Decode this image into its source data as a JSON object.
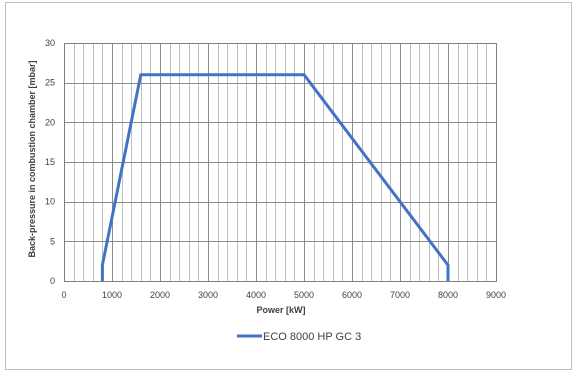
{
  "chart_data": {
    "type": "line",
    "xlabel": "Power [kW]",
    "ylabel": "Back-pressure in combustion chamber [mbar]",
    "xlim": [
      0,
      9000
    ],
    "ylim": [
      0,
      30
    ],
    "x_major_ticks": [
      0,
      1000,
      2000,
      3000,
      4000,
      5000,
      6000,
      7000,
      8000,
      9000
    ],
    "x_tick_labels": [
      "0",
      "1000",
      "2000",
      "3000",
      "4000",
      "5000",
      "6000",
      "7000",
      "8000",
      "9000"
    ],
    "y_major_ticks": [
      0,
      5,
      10,
      15,
      20,
      25,
      30
    ],
    "y_tick_labels": [
      "0",
      "5",
      "10",
      "15",
      "20",
      "25",
      "30"
    ],
    "x_minor_step": 200,
    "grid": true,
    "legend_position": "bottom",
    "series": [
      {
        "name": "ECO 8000 HP GC 3",
        "color": "#4472c4",
        "points": [
          {
            "x": 800,
            "y": 0
          },
          {
            "x": 800,
            "y": 2
          },
          {
            "x": 1600,
            "y": 26
          },
          {
            "x": 5000,
            "y": 26
          },
          {
            "x": 8000,
            "y": 2
          },
          {
            "x": 8000,
            "y": 0
          }
        ]
      }
    ]
  }
}
